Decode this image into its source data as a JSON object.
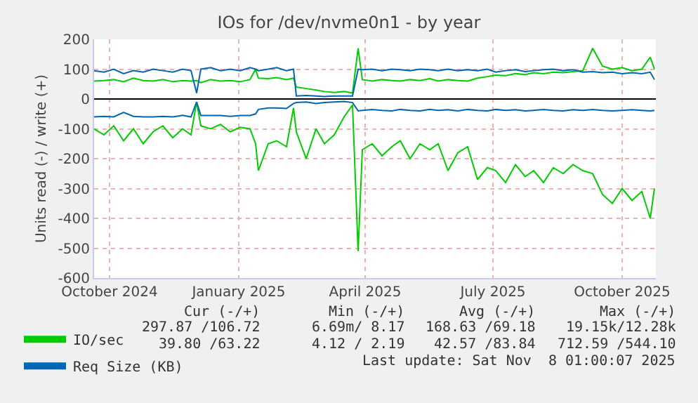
{
  "chart_data": {
    "type": "line",
    "title": "IOs for /dev/nvme0n1 - by year",
    "ylabel": "Units read (-) / write (+)",
    "x": [
      "2024-10-04",
      "2024-10-11",
      "2024-10-18",
      "2024-10-25",
      "2024-11-01",
      "2024-11-08",
      "2024-11-15",
      "2024-11-22",
      "2024-11-29",
      "2024-12-06",
      "2024-12-12",
      "2024-12-16",
      "2024-12-19",
      "2024-12-26",
      "2025-01-02",
      "2025-01-09",
      "2025-01-16",
      "2025-01-23",
      "2025-01-27",
      "2025-01-29",
      "2025-02-05",
      "2025-02-11",
      "2025-02-18",
      "2025-02-23",
      "2025-02-25",
      "2025-03-04",
      "2025-03-11",
      "2025-03-17",
      "2025-03-24",
      "2025-03-31",
      "2025-04-06",
      "2025-04-10",
      "2025-04-13",
      "2025-04-20",
      "2025-04-27",
      "2025-05-04",
      "2025-05-10",
      "2025-05-17",
      "2025-05-24",
      "2025-05-31",
      "2025-06-06",
      "2025-06-13",
      "2025-06-20",
      "2025-06-27",
      "2025-07-04",
      "2025-07-11",
      "2025-07-17",
      "2025-07-24",
      "2025-07-31",
      "2025-08-07",
      "2025-08-13",
      "2025-08-20",
      "2025-08-27",
      "2025-09-03",
      "2025-09-10",
      "2025-09-17",
      "2025-09-24",
      "2025-10-01",
      "2025-10-08",
      "2025-10-15",
      "2025-10-22",
      "2025-10-29",
      "2025-11-04",
      "2025-11-07"
    ],
    "series": [
      {
        "name": "IO/sec",
        "color": "#00cc00",
        "values": [
          60,
          62,
          65,
          58,
          70,
          62,
          60,
          65,
          58,
          62,
          60,
          62,
          55,
          65,
          60,
          62,
          58,
          65,
          100,
          70,
          68,
          72,
          65,
          70,
          40,
          35,
          30,
          25,
          22,
          25,
          20,
          170,
          65,
          60,
          65,
          62,
          60,
          65,
          62,
          68,
          60,
          65,
          62,
          60,
          70,
          75,
          80,
          78,
          85,
          82,
          88,
          85,
          90,
          88,
          92,
          95,
          170,
          110,
          100,
          105,
          95,
          100,
          140,
          100
        ]
      },
      {
        "color": "#00cc00",
        "values": [
          -100,
          -120,
          -90,
          -140,
          -100,
          -150,
          -110,
          -90,
          -130,
          -100,
          -120,
          -10,
          -90,
          -100,
          -85,
          -110,
          -95,
          -100,
          -150,
          -240,
          -150,
          -140,
          -160,
          -30,
          -110,
          -200,
          -100,
          -150,
          -120,
          -60,
          -20,
          -510,
          -170,
          -150,
          -190,
          -160,
          -140,
          -200,
          -150,
          -170,
          -150,
          -240,
          -180,
          -160,
          -270,
          -230,
          -240,
          -280,
          -220,
          -260,
          -240,
          -280,
          -230,
          -250,
          -220,
          -240,
          -250,
          -320,
          -350,
          -300,
          -340,
          -310,
          -400,
          -300
        ]
      },
      {
        "name": "Req Size (KB)",
        "color": "#0066b3",
        "values": [
          95,
          90,
          100,
          85,
          95,
          90,
          100,
          95,
          90,
          100,
          95,
          20,
          100,
          105,
          95,
          100,
          95,
          105,
          100,
          95,
          100,
          105,
          95,
          100,
          10,
          12,
          10,
          8,
          10,
          10,
          10,
          100,
          98,
          100,
          95,
          100,
          98,
          95,
          100,
          98,
          95,
          100,
          95,
          98,
          95,
          100,
          90,
          95,
          98,
          92,
          95,
          98,
          100,
          95,
          98,
          90,
          92,
          88,
          90,
          85,
          88,
          85,
          90,
          65
        ]
      },
      {
        "color": "#0066b3",
        "values": [
          -60,
          -58,
          -60,
          -45,
          -58,
          -60,
          -60,
          -58,
          -60,
          -55,
          -60,
          -10,
          -55,
          -55,
          -55,
          -58,
          -55,
          -55,
          -50,
          -35,
          -30,
          -30,
          -32,
          -15,
          -12,
          -10,
          -15,
          -12,
          -10,
          -8,
          -12,
          -40,
          -38,
          -35,
          -38,
          -40,
          -35,
          -38,
          -40,
          -35,
          -38,
          -36,
          -40,
          -35,
          -38,
          -40,
          -35,
          -38,
          -36,
          -40,
          -38,
          -35,
          -38,
          -40,
          -36,
          -38,
          -35,
          -38,
          -40,
          -38,
          -36,
          -38,
          -40,
          -38
        ]
      }
    ],
    "xlim": [
      "2024-10-04",
      "2025-11-08"
    ],
    "xticks": [
      {
        "value": "2024-10-15",
        "label": "October 2024"
      },
      {
        "value": "2025-01-15",
        "label": "January 2025"
      },
      {
        "value": "2025-04-15",
        "label": "April 2025"
      },
      {
        "value": "2025-07-15",
        "label": "July 2025"
      },
      {
        "value": "2025-10-15",
        "label": "October 2025"
      }
    ],
    "ylim": [
      -600,
      200
    ],
    "yticks": [
      -600,
      -500,
      -400,
      -300,
      -200,
      -100,
      0,
      100,
      200
    ],
    "ref_lines": [
      {
        "axis": "y",
        "value": 0,
        "color": "#000000"
      }
    ],
    "grid": true,
    "legend": "bottom",
    "marker": "none",
    "line_style": "solid",
    "annotations": [
      "Cur (-/+)",
      "Min (-/+)",
      "Avg (-/+)",
      "Max (-/+)",
      "297.87 /106.72",
      "6.69m/ 8.17",
      "168.63 /69.18",
      "19.15k/12.28k",
      "39.80 /63.22",
      "4.12 / 2.19",
      "42.57 /83.84",
      "712.59 /544.10",
      "Last update: Sat Nov  8 01:00:07 2025"
    ]
  }
}
